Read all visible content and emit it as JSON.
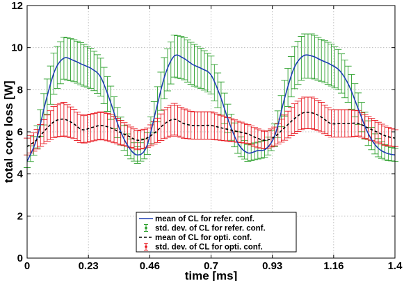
{
  "chart_data": {
    "type": "line",
    "xlabel": "time [ms]",
    "ylabel": "total core loss [W]",
    "xlim": [
      0,
      1.4
    ],
    "ylim": [
      0,
      12
    ],
    "xticks": [
      "0",
      "0.23",
      "0.46",
      "0.7",
      "0.93",
      "1.16",
      "1.4"
    ],
    "yticks": [
      "0",
      "2",
      "4",
      "6",
      "8",
      "10",
      "12"
    ],
    "grid": true,
    "legend_position": "bottom-center",
    "series": [
      {
        "name": "mean of CL for refer. conf.",
        "style": "solid",
        "color": "#1f3fb3",
        "x": [
          0,
          0.035,
          0.07,
          0.105,
          0.14,
          0.175,
          0.21,
          0.245,
          0.28,
          0.315,
          0.35,
          0.385,
          0.42,
          0.455,
          0.49,
          0.525,
          0.56,
          0.595,
          0.63,
          0.665,
          0.7,
          0.735,
          0.77,
          0.805,
          0.84,
          0.875,
          0.91,
          0.945,
          0.98,
          1.015,
          1.05,
          1.085,
          1.12,
          1.155,
          1.19,
          1.225,
          1.26,
          1.295,
          1.33,
          1.365,
          1.4
        ],
        "values": [
          4.6,
          5.6,
          7.4,
          8.9,
          9.5,
          9.4,
          9.2,
          9.0,
          8.6,
          7.5,
          6.2,
          5.3,
          4.9,
          5.3,
          7.0,
          8.7,
          9.6,
          9.5,
          9.2,
          9.0,
          8.7,
          7.7,
          6.4,
          5.4,
          5.0,
          5.1,
          5.2,
          5.9,
          7.6,
          9.0,
          9.6,
          9.6,
          9.4,
          9.2,
          8.9,
          8.2,
          7.1,
          6.0,
          5.3,
          5.0,
          4.9
        ]
      },
      {
        "name": "std. dev. of CL for refer. conf.",
        "style": "errorbar",
        "color": "#2ca02c",
        "x": [
          0,
          0.035,
          0.07,
          0.105,
          0.14,
          0.175,
          0.21,
          0.245,
          0.28,
          0.315,
          0.35,
          0.385,
          0.42,
          0.455,
          0.49,
          0.525,
          0.56,
          0.595,
          0.63,
          0.665,
          0.7,
          0.735,
          0.77,
          0.805,
          0.84,
          0.875,
          0.91,
          0.945,
          0.98,
          1.015,
          1.05,
          1.085,
          1.12,
          1.155,
          1.19,
          1.225,
          1.26,
          1.295,
          1.33,
          1.365,
          1.4
        ],
        "values": [
          4.6,
          5.6,
          7.4,
          8.9,
          9.5,
          9.4,
          9.2,
          9.0,
          8.6,
          7.5,
          6.2,
          5.3,
          4.9,
          5.3,
          7.0,
          8.7,
          9.6,
          9.5,
          9.2,
          9.0,
          8.7,
          7.7,
          6.4,
          5.4,
          5.0,
          5.1,
          5.2,
          5.9,
          7.6,
          9.0,
          9.6,
          9.6,
          9.4,
          9.2,
          8.9,
          8.2,
          7.1,
          6.0,
          5.3,
          5.0,
          4.9
        ],
        "std": [
          0.3,
          0.5,
          0.8,
          1.0,
          1.0,
          1.0,
          1.0,
          0.95,
          0.9,
          0.8,
          0.7,
          0.5,
          0.4,
          0.5,
          0.8,
          1.0,
          1.0,
          1.0,
          1.0,
          0.95,
          0.9,
          0.8,
          0.65,
          0.5,
          0.4,
          0.4,
          0.4,
          0.55,
          0.85,
          1.0,
          1.05,
          1.05,
          1.0,
          1.0,
          0.95,
          0.85,
          0.75,
          0.6,
          0.45,
          0.35,
          0.3
        ]
      },
      {
        "name": "mean of CL for opti. conf.",
        "style": "dashed",
        "color": "#000000",
        "x": [
          0,
          0.035,
          0.07,
          0.105,
          0.14,
          0.175,
          0.21,
          0.245,
          0.28,
          0.315,
          0.35,
          0.385,
          0.42,
          0.455,
          0.49,
          0.525,
          0.56,
          0.595,
          0.63,
          0.665,
          0.7,
          0.735,
          0.77,
          0.805,
          0.84,
          0.875,
          0.91,
          0.945,
          0.98,
          1.015,
          1.05,
          1.085,
          1.12,
          1.155,
          1.19,
          1.225,
          1.26,
          1.295,
          1.33,
          1.365,
          1.4
        ],
        "values": [
          5.3,
          5.6,
          6.1,
          6.5,
          6.6,
          6.4,
          6.1,
          6.2,
          6.3,
          6.2,
          6.0,
          5.8,
          5.6,
          5.7,
          6.0,
          6.4,
          6.6,
          6.4,
          6.3,
          6.3,
          6.3,
          6.2,
          6.1,
          6.0,
          5.9,
          5.7,
          5.6,
          5.8,
          6.2,
          6.6,
          6.9,
          6.9,
          6.7,
          6.4,
          6.4,
          6.4,
          6.4,
          6.2,
          6.0,
          5.8,
          5.7
        ]
      },
      {
        "name": "std. dev. of CL for opti. conf.",
        "style": "errorbar",
        "color": "#e8141c",
        "x": [
          0,
          0.035,
          0.07,
          0.105,
          0.14,
          0.175,
          0.21,
          0.245,
          0.28,
          0.315,
          0.35,
          0.385,
          0.42,
          0.455,
          0.49,
          0.525,
          0.56,
          0.595,
          0.63,
          0.665,
          0.7,
          0.735,
          0.77,
          0.805,
          0.84,
          0.875,
          0.91,
          0.945,
          0.98,
          1.015,
          1.05,
          1.085,
          1.12,
          1.155,
          1.19,
          1.225,
          1.26,
          1.295,
          1.33,
          1.365,
          1.4
        ],
        "values": [
          5.3,
          5.6,
          6.1,
          6.5,
          6.6,
          6.4,
          6.1,
          6.2,
          6.3,
          6.2,
          6.0,
          5.8,
          5.6,
          5.7,
          6.0,
          6.4,
          6.6,
          6.4,
          6.3,
          6.3,
          6.3,
          6.2,
          6.1,
          6.0,
          5.9,
          5.7,
          5.6,
          5.8,
          6.2,
          6.6,
          6.9,
          6.9,
          6.7,
          6.4,
          6.4,
          6.4,
          6.4,
          6.2,
          6.0,
          5.8,
          5.7
        ],
        "std": [
          0.4,
          0.45,
          0.6,
          0.75,
          0.8,
          0.7,
          0.65,
          0.65,
          0.65,
          0.65,
          0.6,
          0.5,
          0.45,
          0.45,
          0.55,
          0.7,
          0.75,
          0.7,
          0.65,
          0.65,
          0.65,
          0.6,
          0.55,
          0.5,
          0.45,
          0.45,
          0.4,
          0.45,
          0.6,
          0.7,
          0.75,
          0.75,
          0.7,
          0.65,
          0.65,
          0.65,
          0.6,
          0.55,
          0.5,
          0.45,
          0.4
        ]
      }
    ]
  }
}
